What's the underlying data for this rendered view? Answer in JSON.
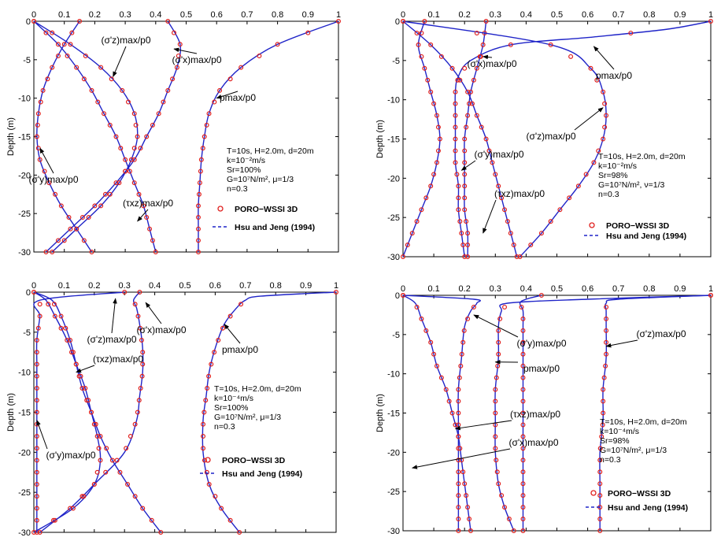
{
  "style": {
    "curve_color": "#1f24c8",
    "marker_color": "#e0201e",
    "axis_color": "#000000"
  },
  "chart_data": [
    {
      "type": "line",
      "xticks": [
        "0",
        "0.1",
        "0.2",
        "0.3",
        "0.4",
        "0.5",
        "0.6",
        "0.7",
        "0.8",
        "0.9",
        "1"
      ],
      "yticks": [
        "0",
        "-5",
        "-10",
        "-15",
        "-20",
        "-25",
        "-30"
      ],
      "xlim": [
        0,
        1
      ],
      "ylim": [
        -30,
        0
      ],
      "ylabel": "Depth (m)",
      "params": [
        "T=10s, H=2.0m, d=20m",
        "k=10⁻²m/s",
        "Sr=100%",
        "G=10⁷N/m², μ=1/3",
        "n=0.3"
      ],
      "legend": {
        "markers": "PORO−WSSI 3D",
        "line": "Hsu and Jeng (1994)"
      },
      "series": [
        {
          "name": "pmax/p0",
          "depth": [
            0,
            -3,
            -6,
            -9,
            -12,
            -15,
            -18,
            -21,
            -24,
            -27,
            -30
          ],
          "value": [
            1.0,
            0.8,
            0.68,
            0.61,
            0.575,
            0.56,
            0.55,
            0.545,
            0.54,
            0.54,
            0.54
          ]
        },
        {
          "name": "(σ'x)max/p0",
          "depth": [
            0,
            -3,
            -6,
            -9,
            -12,
            -15,
            -18,
            -21,
            -24,
            -27,
            -30
          ],
          "value": [
            0.44,
            0.48,
            0.47,
            0.44,
            0.41,
            0.37,
            0.33,
            0.27,
            0.2,
            0.12,
            0.04
          ]
        },
        {
          "name": "(σ'z)max/p0",
          "depth": [
            0,
            -3,
            -6,
            -9,
            -12,
            -15,
            -18,
            -21,
            -24,
            -27,
            -30
          ],
          "value": [
            0.0,
            0.12,
            0.22,
            0.29,
            0.33,
            0.34,
            0.32,
            0.28,
            0.22,
            0.14,
            0.06
          ]
        },
        {
          "name": "(σ'y)max/p0",
          "depth": [
            0,
            -3,
            -6,
            -9,
            -12,
            -15,
            -18,
            -21,
            -24,
            -27,
            -30
          ],
          "value": [
            0.15,
            0.1,
            0.06,
            0.03,
            0.015,
            0.01,
            0.02,
            0.05,
            0.09,
            0.14,
            0.19
          ]
        },
        {
          "name": "(τxz)max/p0",
          "depth": [
            0,
            -3,
            -6,
            -9,
            -12,
            -15,
            -18,
            -21,
            -24,
            -27,
            -30
          ],
          "value": [
            0.0,
            0.08,
            0.14,
            0.19,
            0.23,
            0.27,
            0.3,
            0.33,
            0.36,
            0.38,
            0.4
          ]
        }
      ],
      "annotations": [
        {
          "label": "(σ'z)max/p0",
          "value": 0.26,
          "depth": -7.2
        },
        {
          "label": "(σ'x)max/p0",
          "value": 0.46,
          "depth": -3.6
        },
        {
          "label": "pmax/p0",
          "value": 0.6,
          "depth": -10.0
        },
        {
          "label": "(σ'y)max/p0",
          "value": 0.02,
          "depth": -16.5
        },
        {
          "label": "(τxz)max/p0",
          "value": 0.34,
          "depth": -26.0
        }
      ]
    },
    {
      "type": "line",
      "xticks": [
        "0",
        "0.1",
        "0.2",
        "0.3",
        "0.4",
        "0.5",
        "0.6",
        "0.7",
        "0.8",
        "0.9",
        "1"
      ],
      "yticks": [
        "0",
        "-5",
        "-10",
        "-15",
        "-20",
        "-25",
        "-30"
      ],
      "xlim": [
        0,
        1
      ],
      "ylim": [
        -30,
        0
      ],
      "ylabel": "Depth (m)",
      "params": [
        "T=10s, H=2.0m, d=20m",
        "k=10⁻²m/s",
        "Sr=98%",
        "G=10⁷N/m², ν=1/3",
        "n=0.3"
      ],
      "legend": {
        "markers": "PORO−WSSI 3D",
        "line": "Hsu and Jeng (1994)"
      },
      "series": [
        {
          "name": "pmax/p0",
          "depth": [
            0,
            -1,
            -2,
            -3,
            -5,
            -7,
            -9,
            -12,
            -15,
            -18,
            -21,
            -24,
            -27,
            -30
          ],
          "value": [
            1.0,
            0.86,
            0.62,
            0.35,
            0.22,
            0.18,
            0.17,
            0.17,
            0.17,
            0.17,
            0.18,
            0.18,
            0.19,
            0.2
          ]
        },
        {
          "name": "(σ'x)max/p0",
          "depth": [
            0,
            -3,
            -6,
            -9,
            -12,
            -15,
            -18,
            -21,
            -24,
            -27,
            -30
          ],
          "value": [
            0.27,
            0.26,
            0.24,
            0.22,
            0.21,
            0.2,
            0.2,
            0.2,
            0.2,
            0.21,
            0.21
          ]
        },
        {
          "name": "(σ'z)max/p0",
          "depth": [
            0,
            -3,
            -6,
            -9,
            -12,
            -15,
            -18,
            -21,
            -24,
            -27,
            -30
          ],
          "value": [
            0.0,
            0.48,
            0.61,
            0.65,
            0.66,
            0.65,
            0.62,
            0.57,
            0.51,
            0.45,
            0.38
          ]
        },
        {
          "name": "(σ'y)max/p0",
          "depth": [
            0,
            -3,
            -6,
            -9,
            -12,
            -15,
            -18,
            -21,
            -24,
            -27,
            -30
          ],
          "value": [
            0.07,
            0.05,
            0.07,
            0.09,
            0.11,
            0.12,
            0.11,
            0.09,
            0.06,
            0.03,
            0.0
          ]
        },
        {
          "name": "(τxz)max/p0",
          "depth": [
            0,
            -3,
            -6,
            -9,
            -12,
            -15,
            -18,
            -21,
            -24,
            -27,
            -30
          ],
          "value": [
            0.0,
            0.09,
            0.16,
            0.21,
            0.24,
            0.27,
            0.29,
            0.31,
            0.33,
            0.35,
            0.37
          ]
        }
      ],
      "annotations": [
        {
          "label": "(σ'x)max/p0",
          "value": 0.26,
          "depth": -4.5
        },
        {
          "label": "pmax/p0",
          "value": 0.62,
          "depth": -3.2
        },
        {
          "label": "(σ'z)max/p0",
          "value": 0.65,
          "depth": -11.0
        },
        {
          "label": "(σ'y)max/p0",
          "value": 0.19,
          "depth": -19.0
        },
        {
          "label": "(τxz)max/p0",
          "value": 0.26,
          "depth": -27.0
        }
      ]
    },
    {
      "type": "line",
      "xticks": [
        "0",
        "0.1",
        "0.2",
        "0.3",
        "0.4",
        "0.5",
        "0.6",
        "0.7",
        "0.8",
        "0.9",
        "1"
      ],
      "yticks": [
        "0",
        "-5",
        "-10",
        "-15",
        "-20",
        "-25",
        "-30"
      ],
      "xlim": [
        0,
        1
      ],
      "ylim": [
        -30,
        0
      ],
      "ylabel": "Depth (m)",
      "params": [
        "T=10s, H=2.0m, d=20m",
        "k=10⁻⁴m/s",
        "Sr=100%",
        "G=10⁷N/m², μ=1/3",
        "n=0.3"
      ],
      "legend": {
        "markers": "PORO−WSSI 3D",
        "line": "Hsu and Jeng (1994)"
      },
      "series": [
        {
          "name": "pmax/p0",
          "depth": [
            0,
            -0.5,
            -1,
            -2,
            -4,
            -7,
            -10,
            -13,
            -16,
            -20,
            -24,
            -27,
            -30
          ],
          "value": [
            1.0,
            0.75,
            0.7,
            0.67,
            0.63,
            0.6,
            0.58,
            0.57,
            0.56,
            0.56,
            0.58,
            0.62,
            0.68
          ]
        },
        {
          "name": "(σ'x)max/p0",
          "depth": [
            0,
            -1,
            -2,
            -4,
            -7,
            -10,
            -13,
            -16,
            -20,
            -24,
            -27,
            -30
          ],
          "value": [
            0.35,
            0.33,
            0.34,
            0.35,
            0.36,
            0.36,
            0.35,
            0.34,
            0.3,
            0.2,
            0.12,
            0.02
          ]
        },
        {
          "name": "(σ'z)max/p0",
          "depth": [
            0,
            -1,
            -3,
            -6,
            -9,
            -12,
            -15,
            -18,
            -21,
            -24,
            -27,
            -30
          ],
          "value": [
            0.0,
            0.06,
            0.09,
            0.12,
            0.14,
            0.16,
            0.19,
            0.22,
            0.26,
            0.31,
            0.36,
            0.42
          ]
        },
        {
          "name": "(σ'y)max/p0",
          "depth": [
            0,
            -1,
            -3,
            -6,
            -9,
            -12,
            -15,
            -18,
            -21,
            -24,
            -27,
            -30
          ],
          "value": [
            0.3,
            0.02,
            0.02,
            0.01,
            0.01,
            0.01,
            0.01,
            0.01,
            0.01,
            0.01,
            0.01,
            0.01
          ]
        },
        {
          "name": "(τxz)max/p0",
          "depth": [
            0,
            -1,
            -3,
            -6,
            -9,
            -12,
            -15,
            -18,
            -21,
            -24,
            -27,
            -30
          ],
          "value": [
            0.0,
            0.04,
            0.07,
            0.11,
            0.14,
            0.17,
            0.19,
            0.21,
            0.22,
            0.2,
            0.13,
            0.0
          ]
        }
      ],
      "annotations": [
        {
          "label": "(σ'z)max/p0",
          "value": 0.27,
          "depth": -0.8
        },
        {
          "label": "(σ'x)max/p0",
          "value": 0.37,
          "depth": -1.3
        },
        {
          "label": "(τxz)max/p0",
          "value": 0.14,
          "depth": -10.0
        },
        {
          "label": "pmax/p0",
          "value": 0.63,
          "depth": -4.0
        },
        {
          "label": "(σ'y)max/p0",
          "value": 0.01,
          "depth": -16.0
        }
      ]
    },
    {
      "type": "line",
      "xticks": [
        "0",
        "0.1",
        "0.2",
        "0.3",
        "0.4",
        "0.5",
        "0.6",
        "0.7",
        "0.8",
        "0.9",
        "1"
      ],
      "yticks": [
        "0",
        "-5",
        "-10",
        "-15",
        "-20",
        "-25",
        "-30"
      ],
      "xlim": [
        0,
        1
      ],
      "ylim": [
        -30,
        0
      ],
      "ylabel": "Depth (m)",
      "params": [
        "T=10s, H=2.0m, d=20m",
        "k=10⁻⁴m/s",
        "Sr=98%",
        "G=10⁷N/m², μ=1/3",
        "n=0.3"
      ],
      "legend": {
        "markers": "PORO−WSSI 3D",
        "line": "Hsu and Jeng (1994)"
      },
      "series": [
        {
          "name": "pmax/p0",
          "depth": [
            0,
            -0.5,
            -1,
            -2,
            -4,
            -8,
            -12,
            -16,
            -20,
            -24,
            -27,
            -30
          ],
          "value": [
            1.0,
            0.6,
            0.34,
            0.32,
            0.31,
            0.31,
            0.3,
            0.3,
            0.3,
            0.31,
            0.33,
            0.36
          ]
        },
        {
          "name": "(σ'x)max/p0",
          "depth": [
            0,
            -0.5,
            -1,
            -2,
            -4,
            -8,
            -12,
            -16,
            -20,
            -24,
            -27,
            -30
          ],
          "value": [
            0.45,
            0.4,
            0.38,
            0.39,
            0.39,
            0.39,
            0.39,
            0.39,
            0.39,
            0.39,
            0.39,
            0.39
          ]
        },
        {
          "name": "(σ'z)max/p0",
          "depth": [
            0,
            -0.5,
            -1,
            -2,
            -4,
            -8,
            -12,
            -16,
            -20,
            -24,
            -27,
            -30
          ],
          "value": [
            1.0,
            0.7,
            0.66,
            0.66,
            0.66,
            0.66,
            0.65,
            0.65,
            0.64,
            0.64,
            0.64,
            0.64
          ]
        },
        {
          "name": "(σ'y)max/p0",
          "depth": [
            0,
            -0.5,
            -1,
            -2,
            -4,
            -8,
            -12,
            -16,
            -20,
            -24,
            -27,
            -30
          ],
          "value": [
            0.0,
            0.23,
            0.24,
            0.22,
            0.2,
            0.19,
            0.18,
            0.18,
            0.18,
            0.18,
            0.18,
            0.18
          ]
        },
        {
          "name": "(τxz)max/p0",
          "depth": [
            0,
            -1,
            -3,
            -6,
            -9,
            -12,
            -15,
            -18,
            -21,
            -24,
            -27,
            -30
          ],
          "value": [
            0.0,
            0.04,
            0.06,
            0.09,
            0.11,
            0.14,
            0.16,
            0.18,
            0.19,
            0.2,
            0.21,
            0.22
          ]
        }
      ],
      "annotations": [
        {
          "label": "(σ'y)max/p0",
          "value": 0.23,
          "depth": -2.5
        },
        {
          "label": "pmax/p0",
          "value": 0.3,
          "depth": -8.5
        },
        {
          "label": "(σ'z)max/p0",
          "value": 0.66,
          "depth": -6.5
        },
        {
          "label": "(τxz)max/p0",
          "value": 0.17,
          "depth": -17.0
        },
        {
          "label": "(σ'x)max/p0",
          "value": 0.03,
          "depth": -22.0
        }
      ]
    }
  ]
}
